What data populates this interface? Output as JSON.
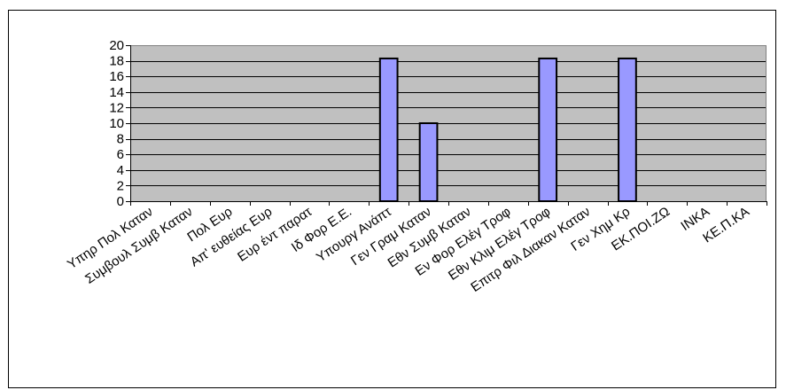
{
  "chart_data": {
    "type": "bar",
    "categories": [
      "Υπηρ Πολ Καταν",
      "Συμβουλ Συμβ Καταν",
      "Πολ Ευρ",
      "Απ' ευθείας Ευρ",
      "Ευρ έντ παρατ",
      "Ιδ Φορ Ε.Ε.",
      "Υπουργ Ανάπτ",
      "Γεν Γραμ Καταν",
      "Εθν Συμβ Καταν",
      "Εν Φορ Ελέγ Τροφ",
      "Εθν Κλιμ Ελέγ Τροφ",
      "Επιτρ Φιλ Διακαν Καταν",
      "Γεν Χημ Κρ",
      "ΕΚ.ΠΟΙ.ΖΩ",
      "ΙΝΚΑ",
      "ΚΕ.Π.ΚΑ"
    ],
    "values": [
      0,
      0,
      0,
      0,
      0,
      0,
      18.3,
      10,
      0,
      0,
      18.3,
      0,
      18.3,
      0,
      0,
      0
    ],
    "ylim": [
      0,
      20
    ],
    "yticks": [
      "0",
      "2",
      "4",
      "6",
      "8",
      "10",
      "12",
      "14",
      "16",
      "18",
      "20"
    ],
    "grid": true,
    "legend": "none",
    "title": "",
    "xlabel": "",
    "ylabel": "",
    "colors": {
      "bar_fill": "#9999ff",
      "bar_stroke": "#000000",
      "plot_background": "#c0c0c0",
      "gridline": "#000000",
      "frame_border": "#000000"
    }
  }
}
